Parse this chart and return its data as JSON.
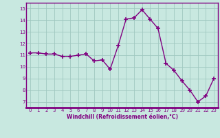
{
  "x": [
    0,
    1,
    2,
    3,
    4,
    5,
    6,
    7,
    8,
    9,
    10,
    11,
    12,
    13,
    14,
    15,
    16,
    17,
    18,
    19,
    20,
    21,
    22,
    23
  ],
  "y": [
    11.2,
    11.2,
    11.1,
    11.1,
    10.9,
    10.9,
    11.0,
    11.1,
    10.5,
    10.6,
    9.8,
    11.8,
    14.1,
    14.2,
    14.9,
    14.1,
    13.3,
    10.3,
    9.7,
    8.8,
    8.0,
    7.0,
    7.5,
    9.0
  ],
  "line_color": "#800080",
  "marker": "+",
  "marker_size": 4,
  "marker_lw": 1.2,
  "line_width": 1.0,
  "bg_color": "#c8e8e0",
  "grid_color": "#a0c8c0",
  "xlabel": "Windchill (Refroidissement éolien,°C)",
  "xlabel_color": "#800080",
  "tick_color": "#800080",
  "xlim": [
    -0.5,
    23.5
  ],
  "ylim": [
    6.5,
    15.5
  ],
  "yticks": [
    7,
    8,
    9,
    10,
    11,
    12,
    13,
    14,
    15
  ],
  "xticks": [
    0,
    1,
    2,
    3,
    4,
    5,
    6,
    7,
    8,
    9,
    10,
    11,
    12,
    13,
    14,
    15,
    16,
    17,
    18,
    19,
    20,
    21,
    22,
    23
  ],
  "spine_color": "#800080",
  "tick_fontsize": 5.0,
  "xlabel_fontsize": 5.5
}
